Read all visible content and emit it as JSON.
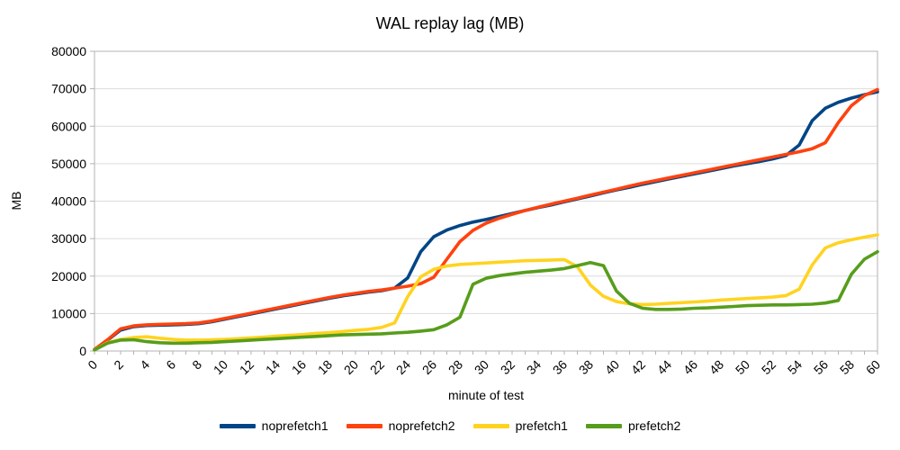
{
  "chart_data": {
    "type": "line",
    "title": "WAL replay lag (MB)",
    "xlabel": "minute of test",
    "ylabel": "MB",
    "xlim": [
      0,
      60
    ],
    "ylim": [
      0,
      80000
    ],
    "x_major_tick_interval": 2,
    "x_minor_tick_interval": 1,
    "y_tick_interval": 10000,
    "grid": "horizontal",
    "legend_position": "bottom",
    "x_tick_labels": [
      0,
      2,
      4,
      6,
      8,
      10,
      12,
      14,
      16,
      18,
      20,
      22,
      24,
      26,
      28,
      30,
      32,
      34,
      36,
      38,
      40,
      42,
      44,
      46,
      48,
      50,
      52,
      54,
      56,
      58,
      60
    ],
    "y_tick_labels": [
      0,
      10000,
      20000,
      30000,
      40000,
      50000,
      60000,
      70000,
      80000
    ],
    "x": [
      0,
      1,
      2,
      3,
      4,
      5,
      6,
      7,
      8,
      9,
      10,
      11,
      12,
      13,
      14,
      15,
      16,
      17,
      18,
      19,
      20,
      21,
      22,
      23,
      24,
      25,
      26,
      27,
      28,
      29,
      30,
      31,
      32,
      33,
      34,
      35,
      36,
      37,
      38,
      39,
      40,
      41,
      42,
      43,
      44,
      45,
      46,
      47,
      48,
      49,
      50,
      51,
      52,
      53,
      54,
      55,
      56,
      57,
      58,
      59,
      60
    ],
    "series": [
      {
        "name": "noprefetch1",
        "color": "#004586",
        "values": [
          400,
          2900,
          5600,
          6500,
          6800,
          6900,
          7000,
          7100,
          7300,
          7800,
          8500,
          9200,
          9900,
          10600,
          11300,
          12000,
          12700,
          13400,
          14100,
          14700,
          15200,
          15700,
          16100,
          16800,
          19500,
          26500,
          30500,
          32300,
          33500,
          34400,
          35100,
          35900,
          36700,
          37500,
          38300,
          39000,
          39800,
          40600,
          41400,
          42200,
          43000,
          43700,
          44500,
          45200,
          45900,
          46600,
          47300,
          48000,
          48700,
          49400,
          50000,
          50600,
          51300,
          52200,
          55000,
          61500,
          64800,
          66400,
          67500,
          68400,
          69200
        ]
      },
      {
        "name": "noprefetch2",
        "color": "#FF420E",
        "values": [
          400,
          3000,
          5900,
          6700,
          7000,
          7100,
          7200,
          7300,
          7500,
          8000,
          8700,
          9400,
          10100,
          10800,
          11500,
          12200,
          12900,
          13600,
          14300,
          14900,
          15400,
          15900,
          16300,
          16800,
          17300,
          18000,
          19700,
          24500,
          29200,
          32200,
          34100,
          35400,
          36500,
          37500,
          38400,
          39200,
          40000,
          40800,
          41600,
          42400,
          43200,
          44000,
          44800,
          45500,
          46200,
          46900,
          47600,
          48300,
          49000,
          49700,
          50400,
          51100,
          51800,
          52500,
          53200,
          54000,
          55600,
          61000,
          65500,
          68200,
          69800
        ]
      },
      {
        "name": "prefetch1",
        "color": "#FFD320",
        "values": [
          300,
          2200,
          3100,
          3600,
          3800,
          3400,
          3100,
          2900,
          2900,
          3000,
          3100,
          3300,
          3500,
          3700,
          4000,
          4200,
          4400,
          4700,
          4900,
          5200,
          5500,
          5800,
          6300,
          7500,
          14500,
          19800,
          21800,
          22700,
          23100,
          23300,
          23500,
          23700,
          23900,
          24100,
          24200,
          24300,
          24400,
          22500,
          17600,
          14600,
          13200,
          12600,
          12400,
          12500,
          12700,
          12900,
          13100,
          13300,
          13600,
          13800,
          14000,
          14200,
          14400,
          14800,
          16500,
          23000,
          27500,
          28900,
          29700,
          30400,
          31000
        ]
      },
      {
        "name": "prefetch2",
        "color": "#579D1C",
        "values": [
          300,
          2100,
          2900,
          3000,
          2500,
          2200,
          2100,
          2100,
          2200,
          2300,
          2500,
          2700,
          2900,
          3100,
          3300,
          3500,
          3700,
          3900,
          4100,
          4300,
          4400,
          4500,
          4600,
          4800,
          5000,
          5300,
          5700,
          7000,
          9000,
          17800,
          19400,
          20100,
          20600,
          21000,
          21300,
          21600,
          22000,
          22800,
          23600,
          22800,
          16000,
          12700,
          11400,
          11100,
          11100,
          11200,
          11400,
          11500,
          11700,
          11900,
          12100,
          12200,
          12300,
          12300,
          12400,
          12500,
          12800,
          13500,
          20500,
          24500,
          26500
        ]
      }
    ],
    "colors": {
      "grid": "#dcdcdc",
      "axis_frame": "#b3b3b3",
      "text": "#000000",
      "background": "#ffffff"
    }
  }
}
